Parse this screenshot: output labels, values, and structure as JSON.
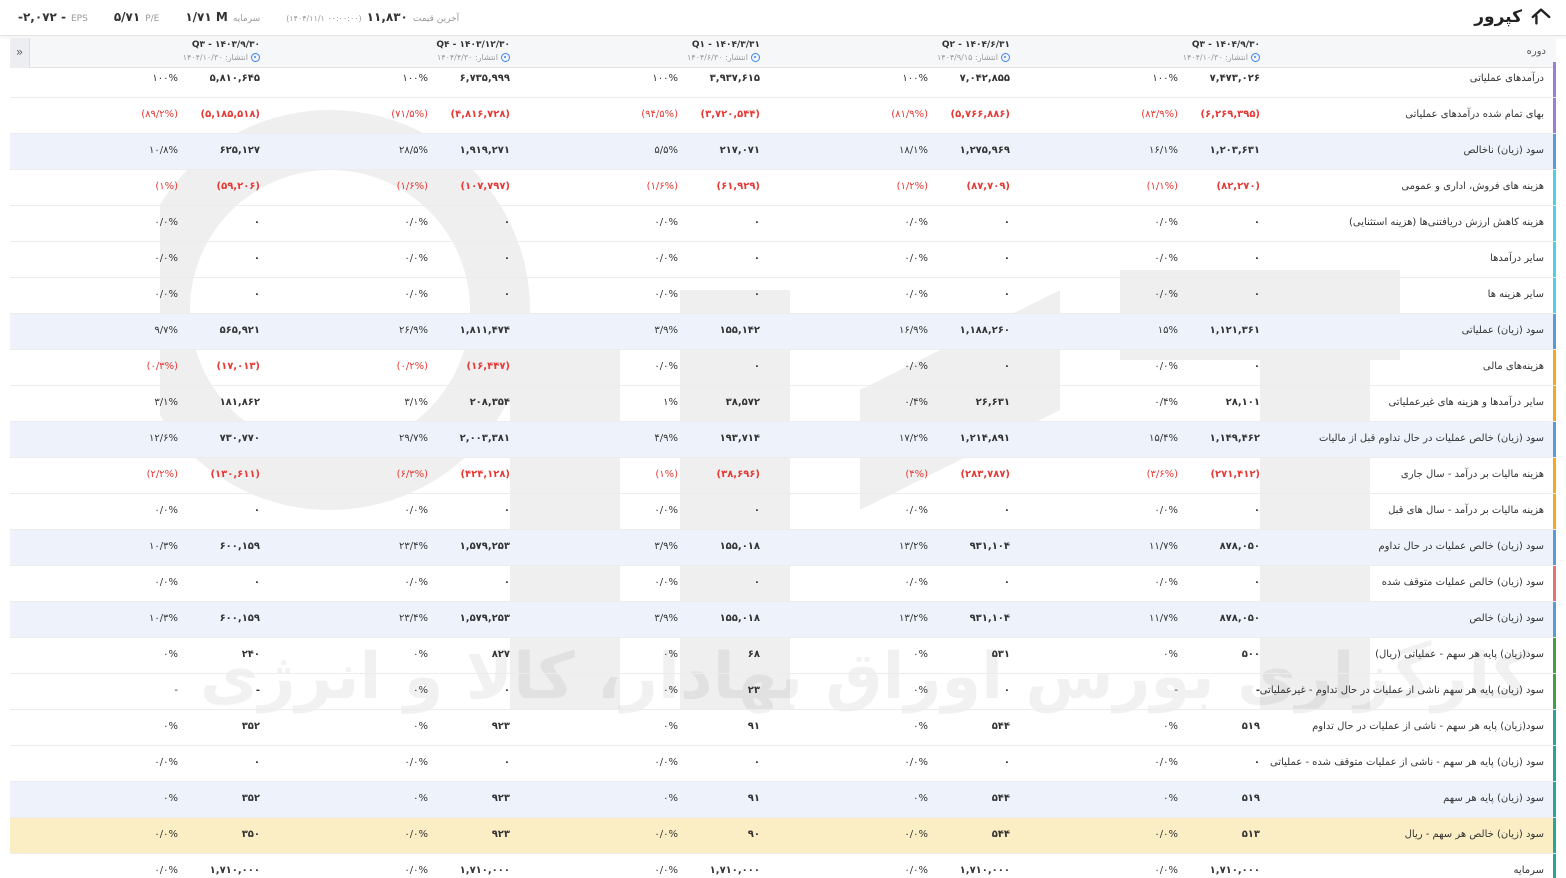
{
  "header": {
    "title": "کپرور",
    "stats": {
      "eps_label": "EPS",
      "eps_value": "-۲,۰۷۲ -",
      "pe_label": "P/E",
      "pe_value": "۵/۷۱",
      "capital_label": "سرمایه",
      "capital_value": "۱/۷۱ M",
      "last_price_label": "آخرین قیمت",
      "last_price_value": "۱۱,۸۳۰",
      "last_price_time": "(۱۴۰۴/۱۱/۱ ۰۰:۰۰:۰۰)"
    }
  },
  "table": {
    "period_header": "دوره",
    "collapse_label": "»",
    "periods": [
      {
        "name": "Q۳ - ۱۴۰۴/۹/۳۰",
        "pub": "انتشار: ۱۴۰۴/۱۰/۳۰"
      },
      {
        "name": "Q۲ - ۱۴۰۴/۶/۳۱",
        "pub": "انتشار: ۱۴۰۴/۹/۱۵"
      },
      {
        "name": "Q۱ - ۱۴۰۴/۳/۳۱",
        "pub": "انتشار: ۱۴۰۴/۶/۳۰"
      },
      {
        "name": "Q۴ - ۱۴۰۳/۱۲/۳۰",
        "pub": "انتشار: ۱۴۰۴/۴/۳۰"
      },
      {
        "name": "Q۳ - ۱۴۰۳/۹/۳۰",
        "pub": "انتشار: ۱۴۰۴/۱۰/۳۰"
      }
    ],
    "rows": [
      {
        "label": "درآمدهای عملیاتی",
        "bar": "#9c7cd4",
        "style": "",
        "cells": [
          [
            "۷,۴۷۳,۰۲۶",
            "۱۰۰%"
          ],
          [
            "۷,۰۴۲,۸۵۵",
            "۱۰۰%"
          ],
          [
            "۳,۹۳۷,۶۱۵",
            "۱۰۰%"
          ],
          [
            "۶,۷۳۵,۹۹۹",
            "۱۰۰%"
          ],
          [
            "۵,۸۱۰,۶۴۵",
            "۱۰۰%"
          ]
        ],
        "neg": false
      },
      {
        "label": "بهای تمام شده درآمدهای عملیاتی",
        "bar": "#9c7cd4",
        "style": "",
        "cells": [
          [
            "(۶,۲۶۹,۳۹۵)",
            "(۸۳/۹%)"
          ],
          [
            "(۵,۷۶۶,۸۸۶)",
            "(۸۱/۹%)"
          ],
          [
            "(۳,۷۲۰,۵۴۴)",
            "(۹۴/۵%)"
          ],
          [
            "(۴,۸۱۶,۷۲۸)",
            "(۷۱/۵%)"
          ],
          [
            "(۵,۱۸۵,۵۱۸)",
            "(۸۹/۲%)"
          ]
        ],
        "neg": true
      },
      {
        "label": "سود (زیان) ناخالص",
        "bar": "#5b9bd5",
        "style": "alt",
        "cells": [
          [
            "۱,۲۰۳,۶۳۱",
            "۱۶/۱%"
          ],
          [
            "۱,۲۷۵,۹۶۹",
            "۱۸/۱%"
          ],
          [
            "۲۱۷,۰۷۱",
            "۵/۵%"
          ],
          [
            "۱,۹۱۹,۲۷۱",
            "۲۸/۵%"
          ],
          [
            "۶۲۵,۱۲۷",
            "۱۰/۸%"
          ]
        ],
        "neg": false
      },
      {
        "label": "هزینه های فروش، اداری و عمومی",
        "bar": "#4dd0e1",
        "style": "",
        "cells": [
          [
            "(۸۲,۲۷۰)",
            "(۱/۱%)"
          ],
          [
            "(۸۷,۷۰۹)",
            "(۱/۲%)"
          ],
          [
            "(۶۱,۹۲۹)",
            "(۱/۶%)"
          ],
          [
            "(۱۰۷,۷۹۷)",
            "(۱/۶%)"
          ],
          [
            "(۵۹,۲۰۶)",
            "(۱%)"
          ]
        ],
        "neg": true
      },
      {
        "label": "هزینه کاهش ارزش دریافتنی‌ها (هزینه استثنایی)",
        "bar": "#4dd0e1",
        "style": "",
        "cells": [
          [
            "۰",
            "۰/۰%"
          ],
          [
            "۰",
            "۰/۰%"
          ],
          [
            "۰",
            "۰/۰%"
          ],
          [
            "۰",
            "۰/۰%"
          ],
          [
            "۰",
            "۰/۰%"
          ]
        ],
        "neg": false
      },
      {
        "label": "سایر درآمدها",
        "bar": "#4dd0e1",
        "style": "",
        "cells": [
          [
            "۰",
            "۰/۰%"
          ],
          [
            "۰",
            "۰/۰%"
          ],
          [
            "۰",
            "۰/۰%"
          ],
          [
            "۰",
            "۰/۰%"
          ],
          [
            "۰",
            "۰/۰%"
          ]
        ],
        "neg": false
      },
      {
        "label": "سایر هزینه ها",
        "bar": "#4dd0e1",
        "style": "",
        "cells": [
          [
            "۰",
            "۰/۰%"
          ],
          [
            "۰",
            "۰/۰%"
          ],
          [
            "۰",
            "۰/۰%"
          ],
          [
            "۰",
            "۰/۰%"
          ],
          [
            "۰",
            "۰/۰%"
          ]
        ],
        "neg": false
      },
      {
        "label": "سود (زیان) عملیاتی",
        "bar": "#5b9bd5",
        "style": "alt",
        "cells": [
          [
            "۱,۱۲۱,۳۶۱",
            "۱۵%"
          ],
          [
            "۱,۱۸۸,۲۶۰",
            "۱۶/۹%"
          ],
          [
            "۱۵۵,۱۴۲",
            "۳/۹%"
          ],
          [
            "۱,۸۱۱,۴۷۴",
            "۲۶/۹%"
          ],
          [
            "۵۶۵,۹۲۱",
            "۹/۷%"
          ]
        ],
        "neg": false
      },
      {
        "label": "هزینه‌های مالی",
        "bar": "#f5a623",
        "style": "",
        "cells": [
          [
            "۰",
            "۰/۰%"
          ],
          [
            "۰",
            "۰/۰%"
          ],
          [
            "۰",
            "۰/۰%"
          ],
          [
            "(۱۶,۴۴۷)",
            "(۰/۲%)"
          ],
          [
            "(۱۷,۰۱۳)",
            "(۰/۳%)"
          ]
        ],
        "neg": false,
        "negFrom": 3
      },
      {
        "label": "سایر درآمدها و هزینه های غیرعملیاتی",
        "bar": "#f5a623",
        "style": "",
        "cells": [
          [
            "۲۸,۱۰۱",
            "۰/۴%"
          ],
          [
            "۲۶,۶۳۱",
            "۰/۴%"
          ],
          [
            "۳۸,۵۷۲",
            "۱%"
          ],
          [
            "۲۰۸,۳۵۴",
            "۳/۱%"
          ],
          [
            "۱۸۱,۸۶۲",
            "۳/۱%"
          ]
        ],
        "neg": false
      },
      {
        "label": "سود (زیان) خالص عملیات در حال تداوم قبل از مالیات",
        "bar": "#5b9bd5",
        "style": "alt",
        "cells": [
          [
            "۱,۱۴۹,۴۶۲",
            "۱۵/۴%"
          ],
          [
            "۱,۲۱۴,۸۹۱",
            "۱۷/۲%"
          ],
          [
            "۱۹۳,۷۱۴",
            "۴/۹%"
          ],
          [
            "۲,۰۰۳,۳۸۱",
            "۲۹/۷%"
          ],
          [
            "۷۳۰,۷۷۰",
            "۱۲/۶%"
          ]
        ],
        "neg": false
      },
      {
        "label": "هزینه مالیات بر درآمد - سال جاری",
        "bar": "#f5a623",
        "style": "",
        "cells": [
          [
            "(۲۷۱,۴۱۲)",
            "(۳/۶%)"
          ],
          [
            "(۲۸۳,۷۸۷)",
            "(۴%)"
          ],
          [
            "(۳۸,۶۹۶)",
            "(۱%)"
          ],
          [
            "(۴۲۴,۱۲۸)",
            "(۶/۳%)"
          ],
          [
            "(۱۳۰,۶۱۱)",
            "(۲/۲%)"
          ]
        ],
        "neg": true
      },
      {
        "label": "هزینه مالیات بر درآمد - سال های قبل",
        "bar": "#f5a623",
        "style": "",
        "cells": [
          [
            "۰",
            "۰/۰%"
          ],
          [
            "۰",
            "۰/۰%"
          ],
          [
            "۰",
            "۰/۰%"
          ],
          [
            "۰",
            "۰/۰%"
          ],
          [
            "۰",
            "۰/۰%"
          ]
        ],
        "neg": false
      },
      {
        "label": "سود (زیان) خالص عملیات در حال تداوم",
        "bar": "#5b9bd5",
        "style": "alt",
        "cells": [
          [
            "۸۷۸,۰۵۰",
            "۱۱/۷%"
          ],
          [
            "۹۳۱,۱۰۴",
            "۱۳/۲%"
          ],
          [
            "۱۵۵,۰۱۸",
            "۳/۹%"
          ],
          [
            "۱,۵۷۹,۲۵۳",
            "۲۳/۴%"
          ],
          [
            "۶۰۰,۱۵۹",
            "۱۰/۳%"
          ]
        ],
        "neg": false
      },
      {
        "label": "سود (زیان) خالص عملیات متوقف شده",
        "bar": "#e57373",
        "style": "",
        "cells": [
          [
            "۰",
            "۰/۰%"
          ],
          [
            "۰",
            "۰/۰%"
          ],
          [
            "۰",
            "۰/۰%"
          ],
          [
            "۰",
            "۰/۰%"
          ],
          [
            "۰",
            "۰/۰%"
          ]
        ],
        "neg": false
      },
      {
        "label": "سود (زیان) خالص",
        "bar": "#5b9bd5",
        "style": "alt",
        "cells": [
          [
            "۸۷۸,۰۵۰",
            "۱۱/۷%"
          ],
          [
            "۹۳۱,۱۰۴",
            "۱۳/۲%"
          ],
          [
            "۱۵۵,۰۱۸",
            "۳/۹%"
          ],
          [
            "۱,۵۷۹,۲۵۳",
            "۲۳/۴%"
          ],
          [
            "۶۰۰,۱۵۹",
            "۱۰/۳%"
          ]
        ],
        "neg": false
      },
      {
        "label": "سود(زیان) پایه هر سهم - عملیاتی (ریال)",
        "bar": "#43a047",
        "style": "",
        "cells": [
          [
            "۵۰۰",
            "۰%"
          ],
          [
            "۵۳۱",
            "۰%"
          ],
          [
            "۶۸",
            "۰%"
          ],
          [
            "۸۲۷",
            "۰%"
          ],
          [
            "۲۴۰",
            "۰%"
          ]
        ],
        "neg": false
      },
      {
        "label": "سود (زیان) پایه هر سهم ناشی از عملیات در حال تداوم - غیرعملیاتی",
        "bar": "#43a047",
        "style": "",
        "cells": [
          [
            "-",
            "-"
          ],
          [
            "۰",
            "۰%"
          ],
          [
            "۲۳",
            "۰%"
          ],
          [
            "۰",
            "۰%"
          ],
          [
            "-",
            "-"
          ]
        ],
        "neg": false
      },
      {
        "label": "سود(زیان) پایه هر سهم - ناشی از عملیات در حال تداوم",
        "bar": "#26a69a",
        "style": "",
        "cells": [
          [
            "۵۱۹",
            "۰%"
          ],
          [
            "۵۴۴",
            "۰%"
          ],
          [
            "۹۱",
            "۰%"
          ],
          [
            "۹۲۳",
            "۰%"
          ],
          [
            "۳۵۲",
            "۰%"
          ]
        ],
        "neg": false
      },
      {
        "label": "سود (زیان) پایه هر سهم - ناشی از عملیات متوقف شده - عملیاتی",
        "bar": "#26a69a",
        "style": "",
        "cells": [
          [
            "۰",
            "۰/۰%"
          ],
          [
            "۰",
            "۰/۰%"
          ],
          [
            "۰",
            "۰/۰%"
          ],
          [
            "۰",
            "۰/۰%"
          ],
          [
            "۰",
            "۰/۰%"
          ]
        ],
        "neg": false
      },
      {
        "label": "سود (زیان) پایه هر سهم",
        "bar": "#26a69a",
        "style": "alt",
        "cells": [
          [
            "۵۱۹",
            "۰%"
          ],
          [
            "۵۴۴",
            "۰%"
          ],
          [
            "۹۱",
            "۰%"
          ],
          [
            "۹۲۳",
            "۰%"
          ],
          [
            "۳۵۲",
            "۰%"
          ]
        ],
        "neg": false
      },
      {
        "label": "سود (زیان) خالص هر سهم - ریال",
        "bar": "#26a69a",
        "style": "highlight",
        "cells": [
          [
            "۵۱۳",
            "۰/۰%"
          ],
          [
            "۵۴۴",
            "۰/۰%"
          ],
          [
            "۹۰",
            "۰/۰%"
          ],
          [
            "۹۲۳",
            "۰/۰%"
          ],
          [
            "۳۵۰",
            "۰/۰%"
          ]
        ],
        "neg": false
      },
      {
        "label": "سرمایه",
        "bar": "#26a69a",
        "style": "",
        "cells": [
          [
            "۱,۷۱۰,۰۰۰",
            "۰/۰%"
          ],
          [
            "۱,۷۱۰,۰۰۰",
            "۰/۰%"
          ],
          [
            "۱,۷۱۰,۰۰۰",
            "۰/۰%"
          ],
          [
            "۱,۷۱۰,۰۰۰",
            "۰/۰%"
          ],
          [
            "۱,۷۱۰,۰۰۰",
            "۰/۰%"
          ]
        ],
        "neg": false
      }
    ]
  },
  "watermark_text": "کارگزاری بورس اوراق بهادار، کالا و انرژی"
}
